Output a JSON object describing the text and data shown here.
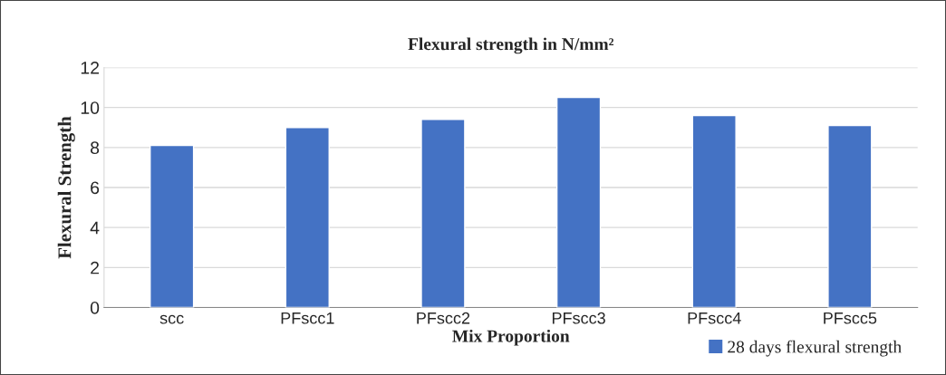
{
  "chart_data": {
    "type": "bar",
    "title": "Flexural strength in N/mm²",
    "xlabel": "Mix Proportion",
    "ylabel": "Flexural Strength",
    "categories": [
      "scc",
      "PFscc1",
      "PFscc2",
      "PFscc3",
      "PFscc4",
      "PFscc5"
    ],
    "series": [
      {
        "name": "28 days flexural strength",
        "color": "#4472c4",
        "values": [
          8.1,
          9.0,
          9.4,
          10.5,
          9.6,
          9.1
        ]
      }
    ],
    "ylim": [
      0,
      12
    ],
    "yticks": [
      0,
      2,
      4,
      6,
      8,
      10,
      12
    ],
    "grid": "y",
    "legend": "bottom right"
  }
}
